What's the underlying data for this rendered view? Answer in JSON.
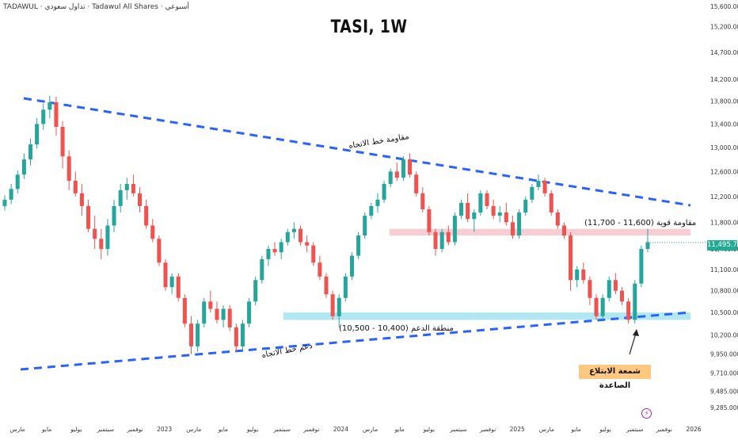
{
  "watermark": "TADAWUL · تداول سعودي · Tadawul All Shares · أسبوعي",
  "chart_data": {
    "type": "candlestick",
    "title": "TASI, 1W",
    "y_axis": {
      "scale": "log",
      "position": "right",
      "ticks": [
        "15,600.000",
        "15,200.000",
        "14,700.000",
        "14,200.000",
        "13,800.000",
        "13,400.000",
        "13,000.000",
        "12,600.000",
        "12,200.000",
        "11,800.000",
        "11,400.000",
        "11,100.000",
        "10,800.000",
        "10,500.000",
        "10,200.000",
        "9,950.000",
        "9,710.000",
        "9,485.000",
        "9,285.000"
      ],
      "range": [
        9210,
        15650
      ]
    },
    "x_axis": {
      "ticks": [
        "مارس",
        "مايو",
        "يوليو",
        "سبتمبر",
        "نوفمبر",
        "2023",
        "مارس",
        "مايو",
        "يوليو",
        "سبتمبر",
        "نوفمبر",
        "2024",
        "مارس",
        "مايو",
        "يوليو",
        "سبتمبر",
        "نوفمبر",
        "2025",
        "مارس",
        "مايو",
        "يوليو",
        "سبتمبر",
        "نوفمبر",
        "2026"
      ]
    },
    "last_price": "11,495.720",
    "candles": [
      [
        12050,
        12220,
        11980,
        12150
      ],
      [
        12150,
        12400,
        12080,
        12320
      ],
      [
        12320,
        12620,
        12250,
        12550
      ],
      [
        12550,
        12900,
        12480,
        12800
      ],
      [
        12800,
        13150,
        12700,
        13050
      ],
      [
        13050,
        13500,
        12980,
        13400
      ],
      [
        13400,
        13750,
        13300,
        13650
      ],
      [
        13650,
        13900,
        13500,
        13780
      ],
      [
        13780,
        13880,
        13200,
        13350
      ],
      [
        13350,
        13450,
        12650,
        12850
      ],
      [
        12850,
        12950,
        12300,
        12450
      ],
      [
        12450,
        12600,
        12200,
        12250
      ],
      [
        12250,
        12400,
        11900,
        12050
      ],
      [
        12050,
        12150,
        11650,
        11700
      ],
      [
        11700,
        11900,
        11400,
        11550
      ],
      [
        11550,
        11700,
        11250,
        11400
      ],
      [
        11400,
        11850,
        11300,
        11750
      ],
      [
        11750,
        12150,
        11650,
        12050
      ],
      [
        12050,
        12400,
        11950,
        12300
      ],
      [
        12300,
        12500,
        12150,
        12400
      ],
      [
        12400,
        12550,
        12200,
        12250
      ],
      [
        12250,
        12350,
        11950,
        12050
      ],
      [
        12050,
        12150,
        11700,
        11750
      ],
      [
        11750,
        11850,
        11500,
        11550
      ],
      [
        11550,
        11600,
        11150,
        11200
      ],
      [
        11200,
        11250,
        10800,
        10850
      ],
      [
        10850,
        11050,
        10750,
        11000
      ],
      [
        11000,
        11050,
        10650,
        10700
      ],
      [
        10700,
        10750,
        10300,
        10350
      ],
      [
        10350,
        10450,
        9950,
        10050
      ],
      [
        10050,
        10400,
        9980,
        10350
      ],
      [
        10350,
        10700,
        10300,
        10650
      ],
      [
        10650,
        10800,
        10500,
        10550
      ],
      [
        10550,
        10650,
        10350,
        10400
      ],
      [
        10400,
        10600,
        10300,
        10550
      ],
      [
        10550,
        10600,
        10250,
        10300
      ],
      [
        10300,
        10350,
        9980,
        10050
      ],
      [
        10050,
        10400,
        10000,
        10350
      ],
      [
        10350,
        10700,
        10300,
        10650
      ],
      [
        10650,
        11000,
        10600,
        10950
      ],
      [
        10950,
        11300,
        10900,
        11250
      ],
      [
        11250,
        11450,
        11150,
        11400
      ],
      [
        11400,
        11500,
        11300,
        11350
      ],
      [
        11350,
        11550,
        11250,
        11500
      ],
      [
        11500,
        11700,
        11450,
        11650
      ],
      [
        11650,
        11800,
        11550,
        11700
      ],
      [
        11700,
        11750,
        11450,
        11500
      ],
      [
        11500,
        11600,
        11350,
        11450
      ],
      [
        11450,
        11500,
        11150,
        11200
      ],
      [
        11200,
        11300,
        10950,
        11000
      ],
      [
        11000,
        11050,
        10700,
        10750
      ],
      [
        10750,
        10800,
        10400,
        10450
      ],
      [
        10450,
        10750,
        10300,
        10700
      ],
      [
        10700,
        11050,
        10650,
        11000
      ],
      [
        11000,
        11350,
        10950,
        11300
      ],
      [
        11300,
        11650,
        11250,
        11600
      ],
      [
        11600,
        11950,
        11550,
        11900
      ],
      [
        11900,
        12100,
        11850,
        12050
      ],
      [
        12050,
        12250,
        11950,
        12150
      ],
      [
        12150,
        12450,
        12100,
        12400
      ],
      [
        12400,
        12650,
        12350,
        12600
      ],
      [
        12600,
        12750,
        12450,
        12500
      ],
      [
        12500,
        12850,
        12450,
        12800
      ],
      [
        12800,
        12900,
        12500,
        12550
      ],
      [
        12550,
        12600,
        12200,
        12250
      ],
      [
        12250,
        12350,
        11950,
        12000
      ],
      [
        12000,
        12050,
        11600,
        11650
      ],
      [
        11650,
        11700,
        11300,
        11400
      ],
      [
        11400,
        11700,
        11350,
        11650
      ],
      [
        11650,
        11750,
        11450,
        11500
      ],
      [
        11500,
        11950,
        11450,
        11900
      ],
      [
        11900,
        12150,
        11850,
        12100
      ],
      [
        12100,
        12250,
        11800,
        11850
      ],
      [
        11850,
        12000,
        11650,
        11950
      ],
      [
        11950,
        12300,
        11900,
        12250
      ],
      [
        12250,
        12300,
        12000,
        12050
      ],
      [
        12050,
        12150,
        11850,
        11900
      ],
      [
        11900,
        12050,
        11800,
        11950
      ],
      [
        11950,
        12100,
        11750,
        11800
      ],
      [
        11800,
        11900,
        11550,
        11600
      ],
      [
        11600,
        12000,
        11550,
        11950
      ],
      [
        11950,
        12200,
        11900,
        12150
      ],
      [
        12150,
        12400,
        12100,
        12350
      ],
      [
        12350,
        12550,
        12300,
        12450
      ],
      [
        12450,
        12500,
        12200,
        12250
      ],
      [
        12250,
        12300,
        11900,
        11950
      ],
      [
        11950,
        12000,
        11700,
        11750
      ],
      [
        11750,
        11800,
        11550,
        11600
      ],
      [
        11600,
        11650,
        10800,
        10950
      ],
      [
        10950,
        11150,
        10850,
        11100
      ],
      [
        11100,
        11200,
        10900,
        10950
      ],
      [
        10950,
        11000,
        10600,
        10700
      ],
      [
        10700,
        10750,
        10400,
        10450
      ],
      [
        10450,
        10750,
        10400,
        10700
      ],
      [
        10700,
        11000,
        10650,
        10950
      ],
      [
        10950,
        11050,
        10750,
        10800
      ],
      [
        10800,
        10850,
        10600,
        10650
      ],
      [
        10650,
        10700,
        10350,
        10400
      ],
      [
        10400,
        10950,
        10350,
        10900
      ],
      [
        10900,
        11450,
        10850,
        11400
      ],
      [
        11400,
        11700,
        11350,
        11500
      ]
    ]
  },
  "annotations": {
    "upper_trend": "مقاومة خط الاتجاه",
    "resistance": "مقاومة قوية (11,600 - 11,700)",
    "support_zone": "منطقة الدعم (10,400 - 10,500)",
    "lower_trend": "دعم خط الاتجاه",
    "breakout": "شمعة الابتلاع الصاعدة"
  },
  "colors": {
    "up": "#26a69a",
    "down": "#ef5350",
    "trend": "#2962ff",
    "resistance_band": "#f8c8cf",
    "support_band": "#a8e6ef",
    "badge": "#ffc880"
  }
}
